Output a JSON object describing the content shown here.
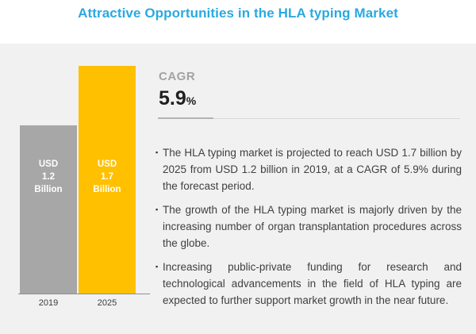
{
  "title": "Attractive Opportunities in the HLA typing Market",
  "chart_data": {
    "type": "bar",
    "categories": [
      "2019",
      "2025"
    ],
    "values": [
      1.2,
      1.7
    ],
    "unit": "USD Billion",
    "ylim": [
      0,
      1.8
    ],
    "bar_colors": [
      "#A7A7A7",
      "#FFC000"
    ],
    "bar_labels": [
      [
        "USD",
        "1.2",
        "Billion"
      ],
      [
        "USD",
        "1.7",
        "Billion"
      ]
    ],
    "legend": "none",
    "grid": "off"
  },
  "cagr": {
    "label": "CAGR",
    "value": "5.9",
    "percent_sign": "%"
  },
  "bullet_marker": "▪",
  "bullets": [
    "The HLA typing market is projected to reach USD 1.7 billion by 2025 from USD 1.2 billion in 2019, at a CAGR of 5.9% during the forecast period.",
    "The growth of the HLA typing market is majorly driven by the increasing number of organ transplantation procedures across the globe.",
    "Increasing public-private funding for research and technological advancements in the field of HLA typing are expected to further support market growth in the near future."
  ],
  "colors": {
    "title_blue": "#2BA9E0",
    "bar_gray": "#A7A7A7",
    "bar_yellow": "#FFC000",
    "panel_bg": "#F1F1F1",
    "text_dark": "#404040",
    "cagr_label_gray": "#A3A3A3"
  }
}
